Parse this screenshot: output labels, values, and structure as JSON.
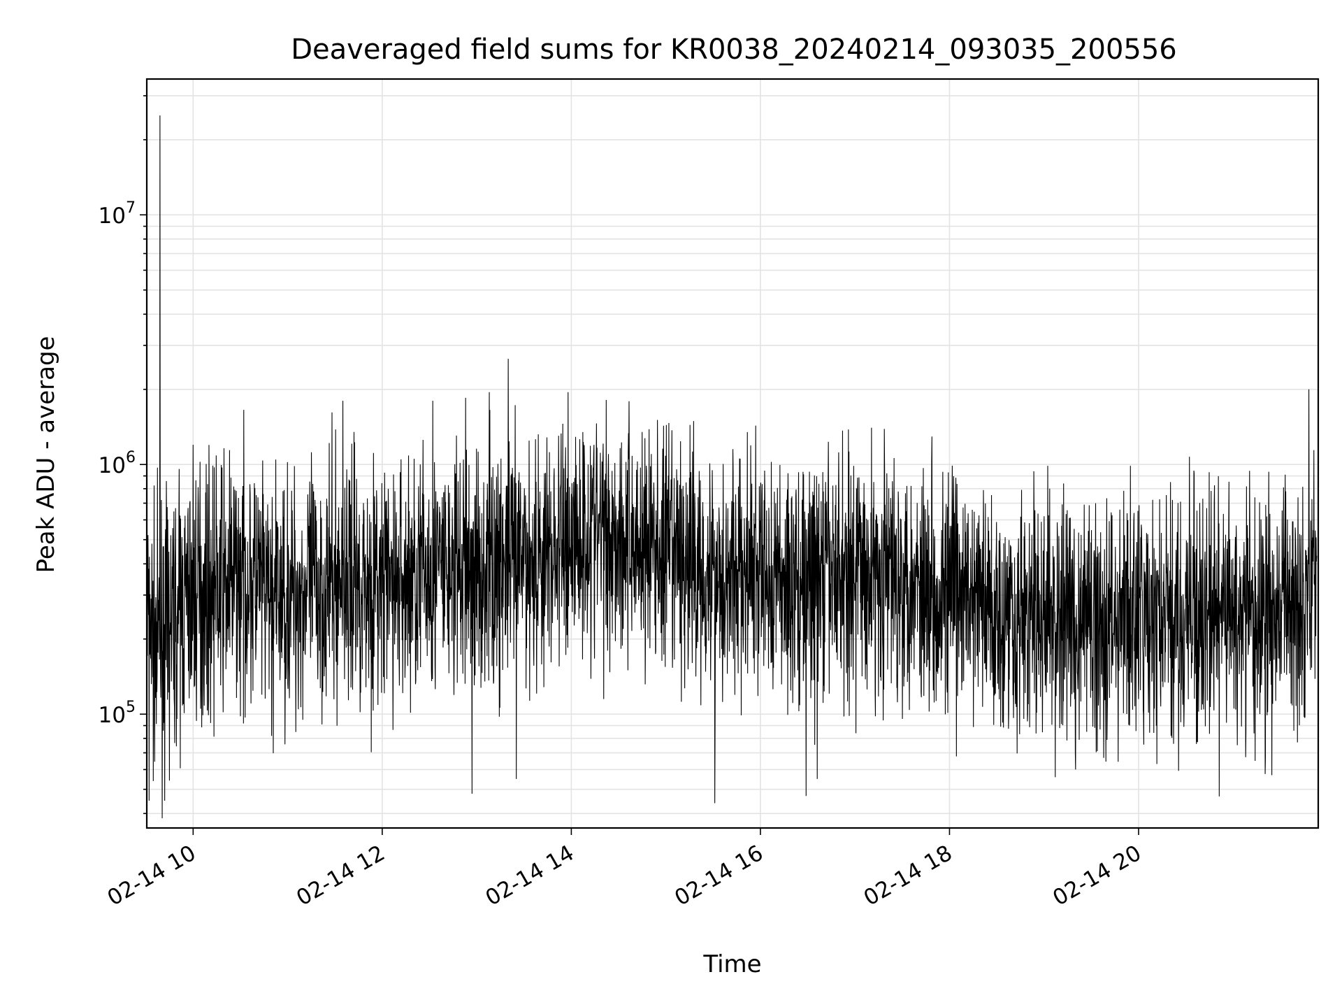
{
  "chart_data": {
    "type": "line",
    "title": "Deaveraged field sums for KR0038_20240214_093035_200556",
    "xlabel": "Time",
    "ylabel": "Peak ADU - average",
    "y_scale": "log",
    "xlim": [
      "2024-02-14T09:30:35",
      "2024-02-14T21:54:00"
    ],
    "ylim": [
      35000,
      35000000
    ],
    "grid": true,
    "x_tick_labels": [
      {
        "value": "2024-02-14T10:00:00",
        "label": "02-14 10"
      },
      {
        "value": "2024-02-14T12:00:00",
        "label": "02-14 12"
      },
      {
        "value": "2024-02-14T14:00:00",
        "label": "02-14 14"
      },
      {
        "value": "2024-02-14T16:00:00",
        "label": "02-14 16"
      },
      {
        "value": "2024-02-14T18:00:00",
        "label": "02-14 18"
      },
      {
        "value": "2024-02-14T20:00:00",
        "label": "02-14 20"
      }
    ],
    "y_tick_labels": [
      {
        "value": 100000,
        "base": "10",
        "exp": "5"
      },
      {
        "value": 1000000,
        "base": "10",
        "exp": "6"
      },
      {
        "value": 10000000,
        "base": "10",
        "exp": "7"
      }
    ],
    "series": [
      {
        "color": "#000000",
        "x": [
          "2024-02-14T09:31",
          "2024-02-14T09:35",
          "2024-02-14T09:40",
          "2024-02-14T09:45",
          "2024-02-14T09:50",
          "2024-02-14T09:55",
          "2024-02-14T10:00",
          "2024-02-14T10:10",
          "2024-02-14T10:20",
          "2024-02-14T10:30",
          "2024-02-14T10:40",
          "2024-02-14T10:50",
          "2024-02-14T11:00",
          "2024-02-14T11:15",
          "2024-02-14T11:30",
          "2024-02-14T11:45",
          "2024-02-14T12:00",
          "2024-02-14T12:15",
          "2024-02-14T12:30",
          "2024-02-14T12:45",
          "2024-02-14T13:00",
          "2024-02-14T13:15",
          "2024-02-14T13:30",
          "2024-02-14T13:45",
          "2024-02-14T14:00",
          "2024-02-14T14:15",
          "2024-02-14T14:30",
          "2024-02-14T14:45",
          "2024-02-14T15:00",
          "2024-02-14T15:15",
          "2024-02-14T15:30",
          "2024-02-14T15:45",
          "2024-02-14T16:00",
          "2024-02-14T16:15",
          "2024-02-14T16:30",
          "2024-02-14T16:45",
          "2024-02-14T17:00",
          "2024-02-14T17:15",
          "2024-02-14T17:30",
          "2024-02-14T17:45",
          "2024-02-14T18:00",
          "2024-02-14T18:15",
          "2024-02-14T18:30",
          "2024-02-14T18:45",
          "2024-02-14T19:00",
          "2024-02-14T19:15",
          "2024-02-14T19:30",
          "2024-02-14T19:45",
          "2024-02-14T20:00",
          "2024-02-14T20:15",
          "2024-02-14T20:30",
          "2024-02-14T20:45",
          "2024-02-14T21:00",
          "2024-02-14T21:15",
          "2024-02-14T21:30",
          "2024-02-14T21:45",
          "2024-02-14T21:53"
        ],
        "y": [
          300000,
          180000,
          200000,
          220000,
          250000,
          280000,
          300000,
          320000,
          330000,
          350000,
          330000,
          280000,
          300000,
          320000,
          330000,
          340000,
          320000,
          340000,
          380000,
          360000,
          370000,
          390000,
          410000,
          430000,
          500000,
          550000,
          520000,
          480000,
          430000,
          400000,
          370000,
          360000,
          350000,
          340000,
          330000,
          360000,
          380000,
          370000,
          360000,
          340000,
          300000,
          280000,
          260000,
          250000,
          240000,
          240000,
          235000,
          240000,
          240000,
          230000,
          235000,
          240000,
          250000,
          240000,
          260000,
          320000,
          450000
        ],
        "extremes_max": [
          {
            "x": "2024-02-14T09:39",
            "y": 25000000
          },
          {
            "x": "2024-02-14T10:00",
            "y": 1200000
          },
          {
            "x": "2024-02-14T11:35",
            "y": 1800000
          },
          {
            "x": "2024-02-14T11:42",
            "y": 1350000
          },
          {
            "x": "2024-02-14T12:32",
            "y": 1800000
          },
          {
            "x": "2024-02-14T12:53",
            "y": 1850000
          },
          {
            "x": "2024-02-14T13:08",
            "y": 1950000
          },
          {
            "x": "2024-02-14T13:20",
            "y": 2650000
          },
          {
            "x": "2024-02-14T13:58",
            "y": 1950000
          },
          {
            "x": "2024-02-14T14:45",
            "y": 1350000
          },
          {
            "x": "2024-02-14T21:48",
            "y": 2000000
          }
        ],
        "extremes_min": [
          {
            "x": "2024-02-14T09:32",
            "y": 45000
          },
          {
            "x": "2024-02-14T09:42",
            "y": 45000
          },
          {
            "x": "2024-02-14T12:57",
            "y": 48000
          },
          {
            "x": "2024-02-14T13:25",
            "y": 55000
          },
          {
            "x": "2024-02-14T15:31",
            "y": 44000
          },
          {
            "x": "2024-02-14T16:29",
            "y": 47000
          },
          {
            "x": "2024-02-14T16:36",
            "y": 55000
          },
          {
            "x": "2024-02-14T19:20",
            "y": 60000
          },
          {
            "x": "2024-02-14T21:14",
            "y": 65000
          }
        ]
      }
    ]
  }
}
